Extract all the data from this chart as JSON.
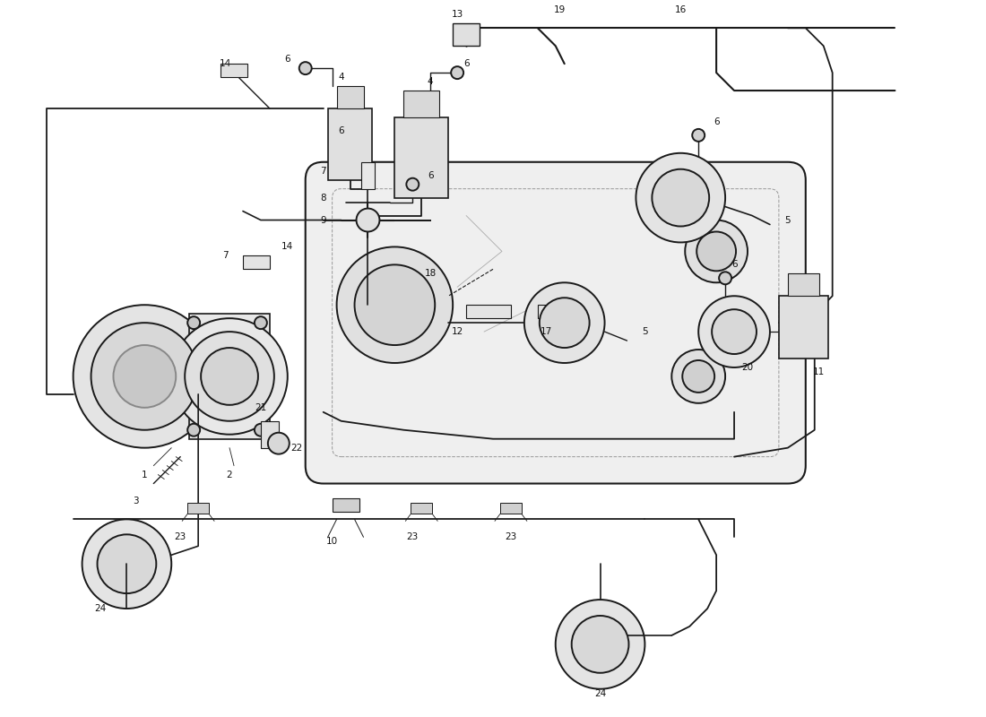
{
  "background_color": "#ffffff",
  "line_color": "#1a1a1a",
  "component_fill": "#e8e8e8",
  "component_fill2": "#d0d0d0",
  "watermark1_color": "#c0c0c0",
  "watermark2_color": "#d4c44a",
  "fig_width": 11.0,
  "fig_height": 8.0,
  "dpi": 100,
  "lw_main": 1.4,
  "lw_thin": 0.9,
  "label_fs": 7.5
}
